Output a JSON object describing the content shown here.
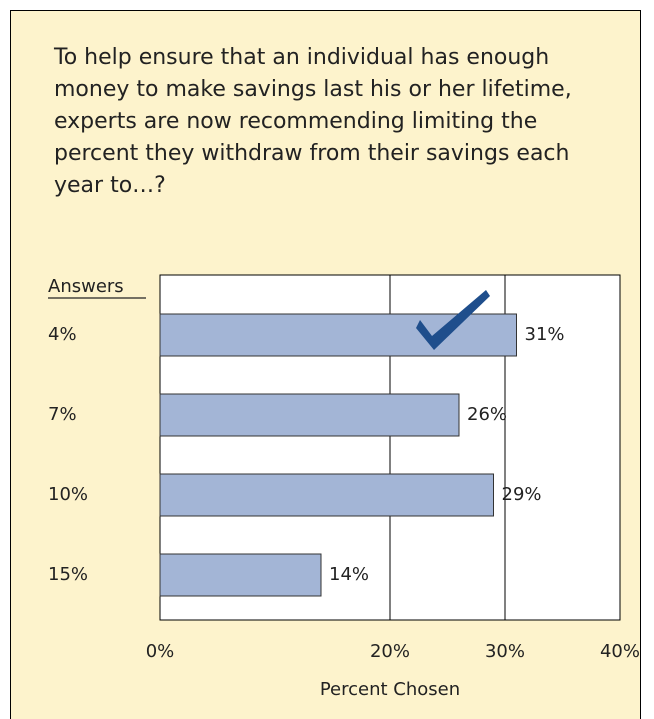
{
  "chart_data": {
    "type": "bar",
    "title": "To help ensure that an individual has enough money to make savings last his or her lifetime, experts are now recommending limiting the percent they withdraw from their savings each year to…?",
    "legend_label": "Answers",
    "categories": [
      "4%",
      "7%",
      "10%",
      "15%"
    ],
    "values": [
      31,
      26,
      29,
      14
    ],
    "value_labels": [
      "31%",
      "26%",
      "29%",
      "14%"
    ],
    "color": "#a3b5d6",
    "xlabel": "Percent Chosen",
    "xlim": [
      0,
      40
    ],
    "xticks": [
      {
        "value": 0,
        "label": "0%"
      },
      {
        "value": 20,
        "label": "20%"
      },
      {
        "value": 30,
        "label": "30%"
      },
      {
        "value": 40,
        "label": "40%"
      }
    ],
    "grid": true
  }
}
